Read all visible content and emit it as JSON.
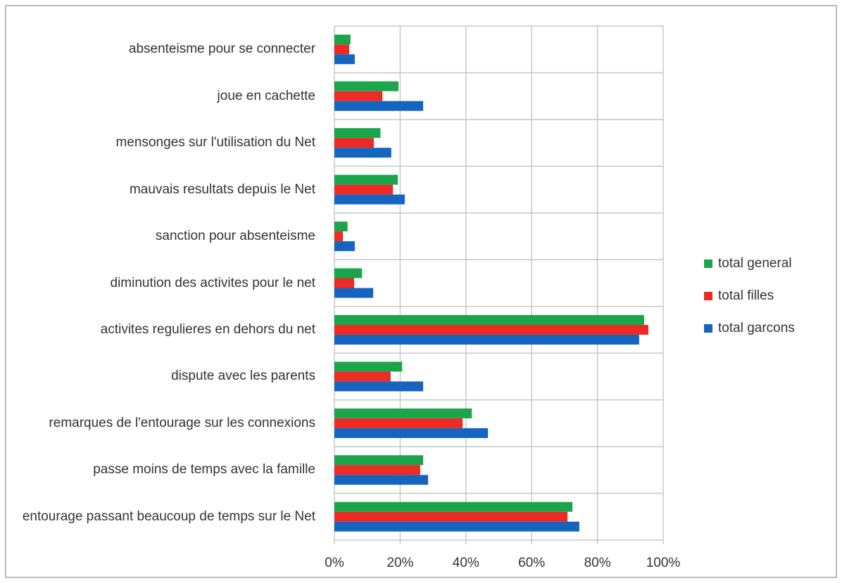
{
  "chart_data": {
    "type": "bar",
    "orientation": "horizontal",
    "categories": [
      "absenteisme pour se connecter",
      "joue en cachette",
      "mensonges sur l'utilisation du Net",
      "mauvais resultats depuis le Net",
      "sanction pour absenteisme",
      "diminution des activites pour le net",
      "activites regulieres en dehors du net",
      "dispute avec les parents",
      "remarques de l'entourage sur les connexions",
      "passe   moins de temps avec la famille",
      "entourage passant beaucoup de temps sur le Net"
    ],
    "series": [
      {
        "name": "total general",
        "color": "#1aa54b",
        "values": [
          4.9,
          19.5,
          14,
          19.3,
          4,
          8.4,
          94.2,
          20.6,
          41.8,
          27,
          72.4
        ]
      },
      {
        "name": "total filles",
        "color": "#ee2a24",
        "values": [
          4.5,
          14.6,
          12,
          17.8,
          2.6,
          6,
          95.5,
          17.1,
          39,
          26.1,
          70.9
        ]
      },
      {
        "name": "total garcons",
        "color": "#1565c0",
        "values": [
          6.2,
          27,
          17.3,
          21.4,
          6.2,
          11.8,
          92.7,
          27,
          46.7,
          28.5,
          74.5
        ]
      }
    ],
    "xlim": [
      0,
      100
    ],
    "xticks": [
      {
        "value": 0,
        "label": "0%"
      },
      {
        "value": 20,
        "label": "20%"
      },
      {
        "value": 40,
        "label": "40%"
      },
      {
        "value": 60,
        "label": "60%"
      },
      {
        "value": 80,
        "label": "80%"
      },
      {
        "value": 100,
        "label": "100%"
      }
    ],
    "grid": true,
    "legend": "right"
  }
}
